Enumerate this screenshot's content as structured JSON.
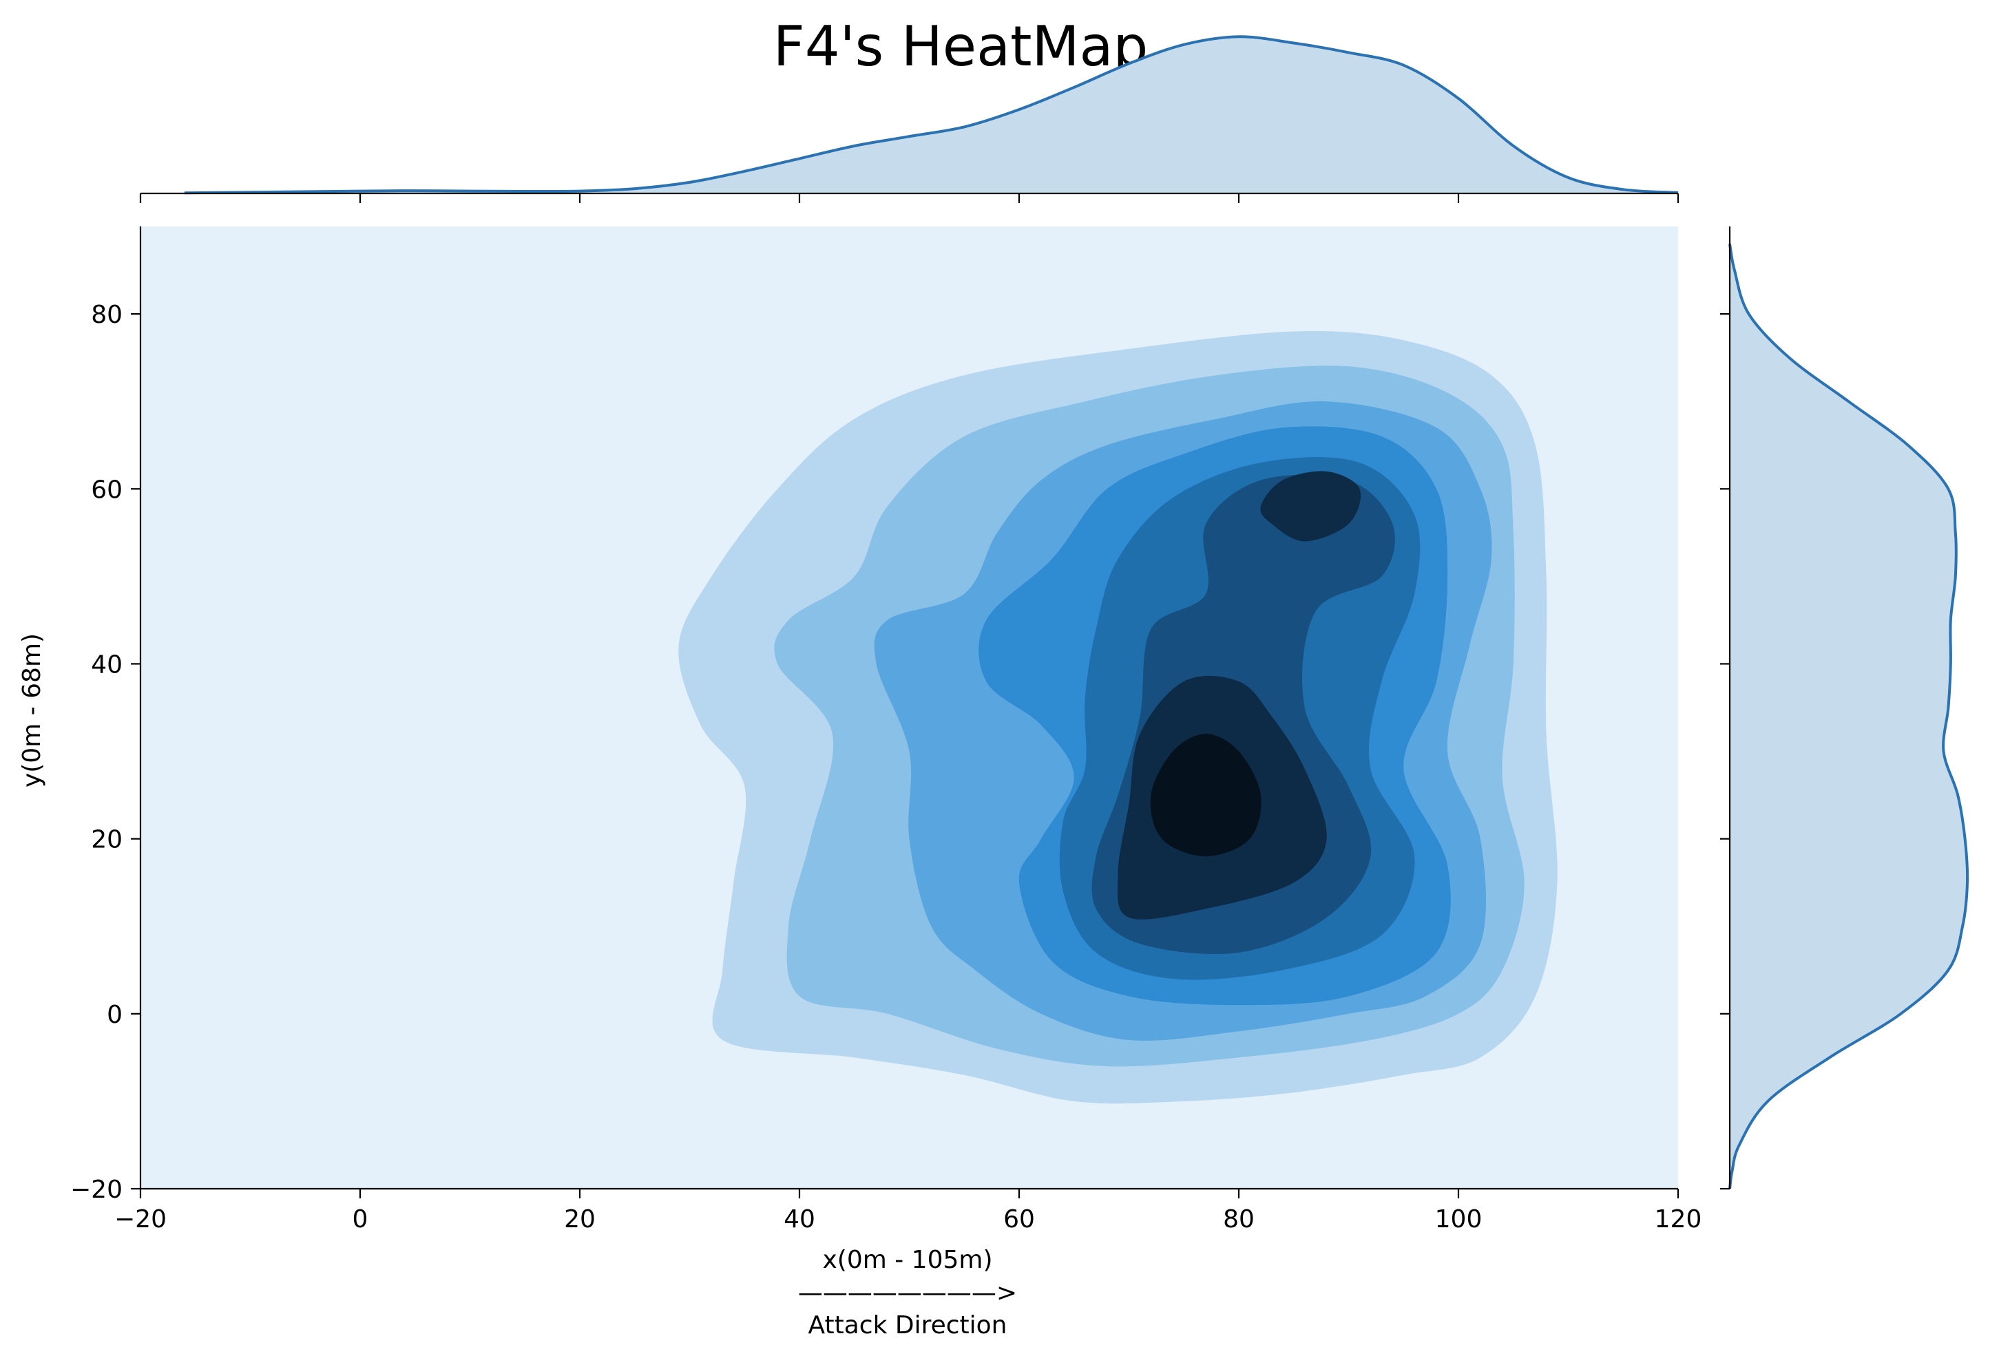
{
  "chart_data": {
    "type": "heatmap",
    "subtype": "kde-contour-jointplot",
    "title": "F4's HeatMap",
    "xlabel": "x(0m - 105m)",
    "xlabel_arrow": "————————>",
    "xlabel_caption": "Attack Direction",
    "ylabel": "y(0m - 68m)",
    "xlim": [
      -20,
      120
    ],
    "ylim": [
      -20,
      90
    ],
    "xticks": [
      -20,
      0,
      20,
      40,
      60,
      80,
      100,
      120
    ],
    "yticks": [
      -20,
      0,
      20,
      40,
      60,
      80
    ],
    "xtick_labels": [
      "−20",
      "0",
      "20",
      "40",
      "60",
      "80",
      "100",
      "120"
    ],
    "ytick_labels": [
      "−20",
      "0",
      "20",
      "40",
      "60",
      "80"
    ],
    "grid": false,
    "colormap": "Blues",
    "colors": {
      "background_level": "#e5f1fa",
      "marginal_line": "#2a72b2",
      "marginal_fill": "#c6dcec"
    },
    "contour_levels": [
      {
        "level": 1,
        "color": "#b7d7f0",
        "points": [
          [
            33,
            -3
          ],
          [
            45,
            -5
          ],
          [
            55,
            -7
          ],
          [
            65,
            -10
          ],
          [
            75,
            -10
          ],
          [
            85,
            -9
          ],
          [
            95,
            -7
          ],
          [
            102,
            -5
          ],
          [
            107,
            2
          ],
          [
            109,
            15
          ],
          [
            108,
            32
          ],
          [
            108,
            50
          ],
          [
            107,
            65
          ],
          [
            103,
            73
          ],
          [
            95,
            77
          ],
          [
            85,
            78
          ],
          [
            70,
            76
          ],
          [
            55,
            73
          ],
          [
            45,
            68
          ],
          [
            38,
            60
          ],
          [
            32,
            50
          ],
          [
            29,
            42
          ],
          [
            31,
            33
          ],
          [
            35,
            26
          ],
          [
            34,
            15
          ],
          [
            33,
            5
          ]
        ]
      },
      {
        "level": 2,
        "color": "#89c0e8",
        "points": [
          [
            40,
            2
          ],
          [
            48,
            0
          ],
          [
            58,
            -4
          ],
          [
            68,
            -6
          ],
          [
            80,
            -5
          ],
          [
            92,
            -3
          ],
          [
            100,
            0
          ],
          [
            104,
            5
          ],
          [
            106,
            15
          ],
          [
            104,
            27
          ],
          [
            105,
            40
          ],
          [
            105,
            55
          ],
          [
            104,
            65
          ],
          [
            99,
            71
          ],
          [
            90,
            74
          ],
          [
            78,
            73
          ],
          [
            66,
            70
          ],
          [
            55,
            66
          ],
          [
            48,
            58
          ],
          [
            45,
            50
          ],
          [
            39,
            45
          ],
          [
            38,
            40
          ],
          [
            43,
            32
          ],
          [
            41,
            20
          ],
          [
            39,
            10
          ]
        ]
      },
      {
        "level": 3,
        "color": "#58a5df",
        "points": [
          [
            52,
            10
          ],
          [
            56,
            5
          ],
          [
            62,
            0
          ],
          [
            70,
            -3
          ],
          [
            80,
            -2
          ],
          [
            90,
            0
          ],
          [
            97,
            2
          ],
          [
            102,
            8
          ],
          [
            102,
            20
          ],
          [
            99,
            30
          ],
          [
            101,
            42
          ],
          [
            103,
            52
          ],
          [
            102,
            60
          ],
          [
            98,
            67
          ],
          [
            88,
            70
          ],
          [
            78,
            68
          ],
          [
            68,
            65
          ],
          [
            62,
            61
          ],
          [
            58,
            55
          ],
          [
            55,
            48
          ],
          [
            48,
            45
          ],
          [
            47,
            40
          ],
          [
            50,
            30
          ],
          [
            50,
            20
          ]
        ]
      },
      {
        "level": 4,
        "color": "#2f8bd2",
        "points": [
          [
            60,
            15
          ],
          [
            63,
            6
          ],
          [
            70,
            2
          ],
          [
            80,
            1
          ],
          [
            90,
            2
          ],
          [
            98,
            7
          ],
          [
            99,
            17
          ],
          [
            95,
            28
          ],
          [
            98,
            38
          ],
          [
            99,
            50
          ],
          [
            98,
            60
          ],
          [
            93,
            66
          ],
          [
            84,
            67
          ],
          [
            75,
            64
          ],
          [
            68,
            60
          ],
          [
            63,
            52
          ],
          [
            57,
            45
          ],
          [
            57,
            38
          ],
          [
            62,
            33
          ],
          [
            65,
            27
          ],
          [
            62,
            20
          ]
        ]
      },
      {
        "level": 5,
        "color": "#1f6fad",
        "points": [
          [
            64,
            14
          ],
          [
            67,
            7
          ],
          [
            74,
            4
          ],
          [
            84,
            5
          ],
          [
            93,
            9
          ],
          [
            96,
            18
          ],
          [
            92,
            28
          ],
          [
            93,
            38
          ],
          [
            96,
            48
          ],
          [
            96,
            57
          ],
          [
            91,
            63
          ],
          [
            82,
            63
          ],
          [
            74,
            59
          ],
          [
            69,
            52
          ],
          [
            67,
            44
          ],
          [
            66,
            36
          ],
          [
            66,
            28
          ],
          [
            64,
            22
          ]
        ]
      },
      {
        "level": 6,
        "color": "#175080",
        "points": [
          [
            67,
            12
          ],
          [
            71,
            8
          ],
          [
            80,
            7
          ],
          [
            88,
            11
          ],
          [
            92,
            18
          ],
          [
            90,
            26
          ],
          [
            86,
            35
          ],
          [
            87,
            46
          ],
          [
            93,
            50
          ],
          [
            94,
            56
          ],
          [
            90,
            61
          ],
          [
            82,
            61
          ],
          [
            77,
            56
          ],
          [
            77,
            48
          ],
          [
            72,
            44
          ],
          [
            71,
            34
          ],
          [
            69,
            25
          ],
          [
            67,
            18
          ]
        ]
      },
      {
        "level": 7,
        "color": "#0d2b47",
        "points": [
          [
            70,
            11
          ],
          [
            77,
            12
          ],
          [
            85,
            15
          ],
          [
            88,
            20
          ],
          [
            86,
            28
          ],
          [
            83,
            34
          ],
          [
            80,
            38
          ],
          [
            75,
            38
          ],
          [
            71,
            32
          ],
          [
            70,
            24
          ],
          [
            69,
            16
          ]
        ]
      },
      {
        "level": 7,
        "color": "#0d2b47",
        "points": [
          [
            83,
            56
          ],
          [
            86,
            54
          ],
          [
            90,
            56
          ],
          [
            91,
            60
          ],
          [
            88,
            62
          ],
          [
            84,
            61
          ],
          [
            82,
            58
          ]
        ]
      },
      {
        "level": 8,
        "color": "#05121e",
        "points": [
          [
            73,
            20
          ],
          [
            77,
            18
          ],
          [
            81,
            20
          ],
          [
            82,
            25
          ],
          [
            80,
            30
          ],
          [
            77,
            32
          ],
          [
            74,
            30
          ],
          [
            72,
            25
          ]
        ]
      }
    ],
    "marginal_x": {
      "x": [
        -16,
        0,
        5,
        10,
        15,
        20,
        25,
        30,
        35,
        40,
        45,
        50,
        55,
        60,
        65,
        70,
        75,
        80,
        85,
        90,
        95,
        100,
        105,
        110,
        115,
        120
      ],
      "density": [
        0.003,
        0.015,
        0.017,
        0.015,
        0.013,
        0.015,
        0.03,
        0.07,
        0.14,
        0.22,
        0.3,
        0.36,
        0.42,
        0.53,
        0.67,
        0.82,
        0.94,
        0.99,
        0.95,
        0.89,
        0.81,
        0.6,
        0.3,
        0.1,
        0.025,
        0.005
      ]
    },
    "marginal_y": {
      "y": [
        -20,
        -18,
        -15,
        -10,
        -5,
        0,
        5,
        10,
        15,
        20,
        25,
        30,
        35,
        40,
        45,
        50,
        55,
        60,
        65,
        70,
        75,
        80,
        85,
        88
      ],
      "density": [
        0.0,
        0.01,
        0.04,
        0.16,
        0.42,
        0.72,
        0.92,
        0.98,
        1.0,
        0.99,
        0.96,
        0.9,
        0.92,
        0.93,
        0.93,
        0.95,
        0.95,
        0.92,
        0.75,
        0.5,
        0.25,
        0.08,
        0.02,
        0.0
      ]
    }
  }
}
